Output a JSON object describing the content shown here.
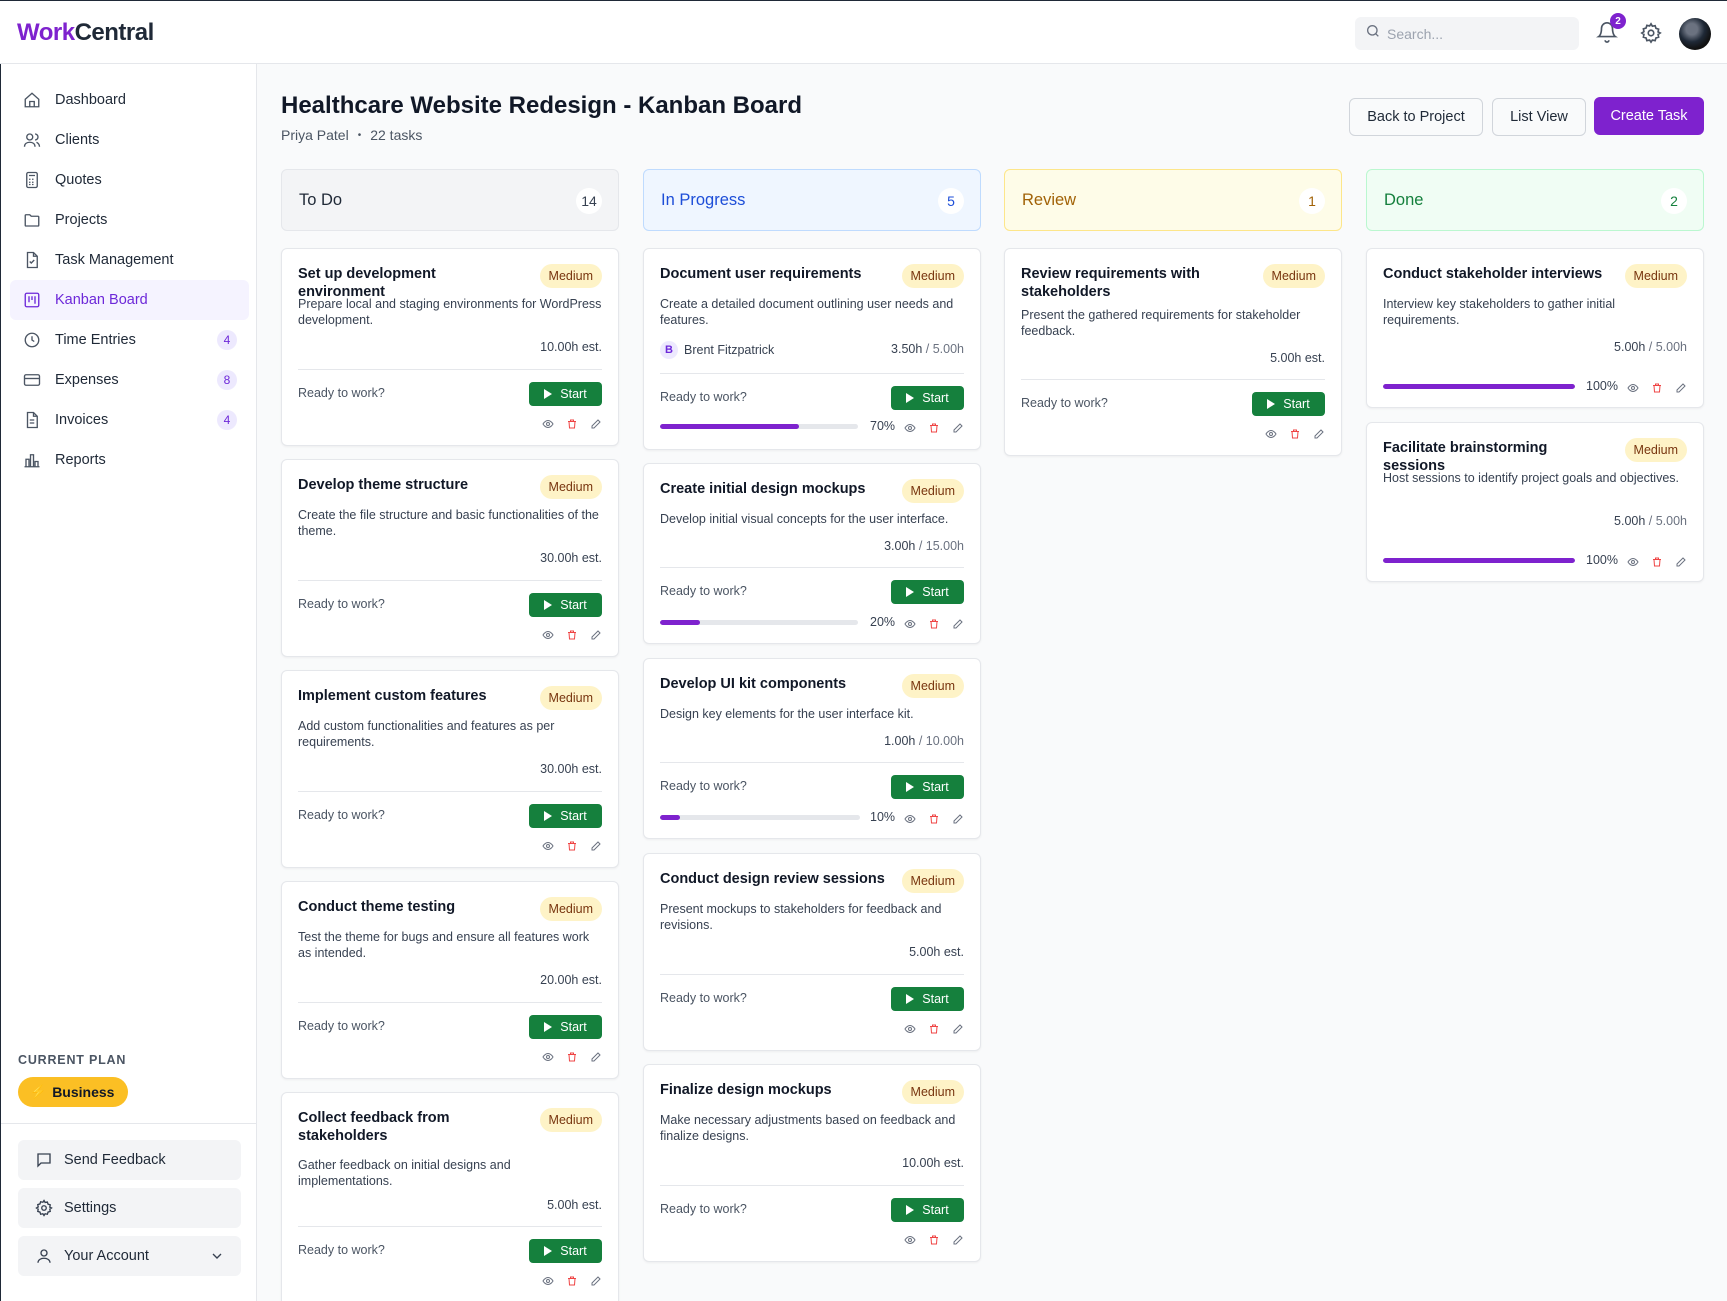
{
  "app": {
    "logo_part1": "Work",
    "logo_part2": "Central",
    "search_placeholder": "Search...",
    "notification_count": "2",
    "accent_color": "#7e22ce"
  },
  "sidebar": {
    "items": [
      {
        "label": "Dashboard",
        "icon": "home-icon"
      },
      {
        "label": "Clients",
        "icon": "users-icon"
      },
      {
        "label": "Quotes",
        "icon": "calculator-icon"
      },
      {
        "label": "Projects",
        "icon": "folder-icon"
      },
      {
        "label": "Task Management",
        "icon": "file-check-icon"
      },
      {
        "label": "Kanban Board",
        "icon": "kanban-icon",
        "active": true
      },
      {
        "label": "Time Entries",
        "icon": "clock-icon",
        "count": "4"
      },
      {
        "label": "Expenses",
        "icon": "credit-card-icon",
        "count": "8"
      },
      {
        "label": "Invoices",
        "icon": "invoice-icon",
        "count": "4"
      },
      {
        "label": "Reports",
        "icon": "bar-chart-icon"
      }
    ],
    "plan_label": "CURRENT PLAN",
    "plan_name": "Business",
    "send_feedback": "Send Feedback",
    "settings": "Settings",
    "account": "Your Account"
  },
  "header": {
    "title": "Healthcare Website Redesign - Kanban Board",
    "owner": "Priya Patel",
    "dot": "•",
    "task_count": "22 tasks",
    "back_button": "Back to Project",
    "list_view_button": "List View",
    "create_task_button": "Create Task"
  },
  "columns": [
    {
      "name": "To Do",
      "count": "14",
      "cards": [
        {
          "title": "Set up development environment",
          "priority": "Medium",
          "description": "Prepare local and staging environments for WordPress development.",
          "estimate": "10.00h est.",
          "ready": "Ready to work?",
          "start": "Start"
        },
        {
          "title": "Develop theme structure",
          "priority": "Medium",
          "description": "Create the file structure and basic functionalities of the theme.",
          "estimate": "30.00h est.",
          "ready": "Ready to work?",
          "start": "Start"
        },
        {
          "title": "Implement custom features",
          "priority": "Medium",
          "description": "Add custom functionalities and features as per requirements.",
          "estimate": "30.00h est.",
          "ready": "Ready to work?",
          "start": "Start"
        },
        {
          "title": "Conduct theme testing",
          "priority": "Medium",
          "description": "Test the theme for bugs and ensure all features work as intended.",
          "estimate": "20.00h est.",
          "ready": "Ready to work?",
          "start": "Start"
        },
        {
          "title": "Collect feedback from stakeholders",
          "priority": "Medium",
          "description": "Gather feedback on initial designs and implementations.",
          "estimate": "5.00h est.",
          "ready": "Ready to work?",
          "start": "Start"
        }
      ]
    },
    {
      "name": "In Progress",
      "count": "5",
      "cards": [
        {
          "title": "Document user requirements",
          "priority": "Medium",
          "description": "Create a detailed document outlining user needs and features.",
          "assignee_initial": "B",
          "assignee": "Brent Fitzpatrick",
          "logged": "3.50h",
          "total": " / 5.00h",
          "ready": "Ready to work?",
          "start": "Start",
          "progress": 70,
          "progress_label": "70%"
        },
        {
          "title": "Create initial design mockups",
          "priority": "Medium",
          "description": "Develop initial visual concepts for the user interface.",
          "logged": "3.00h",
          "total": " / 15.00h",
          "ready": "Ready to work?",
          "start": "Start",
          "progress": 20,
          "progress_label": "20%"
        },
        {
          "title": "Develop UI kit components",
          "priority": "Medium",
          "description": "Design key elements for the user interface kit.",
          "logged": "1.00h",
          "total": " / 10.00h",
          "ready": "Ready to work?",
          "start": "Start",
          "progress": 10,
          "progress_label": "10%"
        },
        {
          "title": "Conduct design review sessions",
          "priority": "Medium",
          "description": "Present mockups to stakeholders for feedback and revisions.",
          "estimate": "5.00h est.",
          "ready": "Ready to work?",
          "start": "Start"
        },
        {
          "title": "Finalize design mockups",
          "priority": "Medium",
          "description": "Make necessary adjustments based on feedback and finalize designs.",
          "estimate": "10.00h est.",
          "ready": "Ready to work?",
          "start": "Start"
        }
      ]
    },
    {
      "name": "Review",
      "count": "1",
      "cards": [
        {
          "title": "Review requirements with stakeholders",
          "priority": "Medium",
          "description": "Present the gathered requirements for stakeholder feedback.",
          "estimate": "5.00h est.",
          "ready": "Ready to work?",
          "start": "Start"
        }
      ]
    },
    {
      "name": "Done",
      "count": "2",
      "cards": [
        {
          "title": "Conduct stakeholder interviews",
          "priority": "Medium",
          "description": "Interview key stakeholders to gather initial requirements.",
          "logged": "5.00h",
          "total": " / 5.00h",
          "progress": 100,
          "progress_label": "100%"
        },
        {
          "title": "Facilitate brainstorming sessions",
          "priority": "Medium",
          "description": "Host sessions to identify project goals and objectives.",
          "logged": "5.00h",
          "total": " / 5.00h",
          "progress": 100,
          "progress_label": "100%"
        }
      ]
    }
  ]
}
